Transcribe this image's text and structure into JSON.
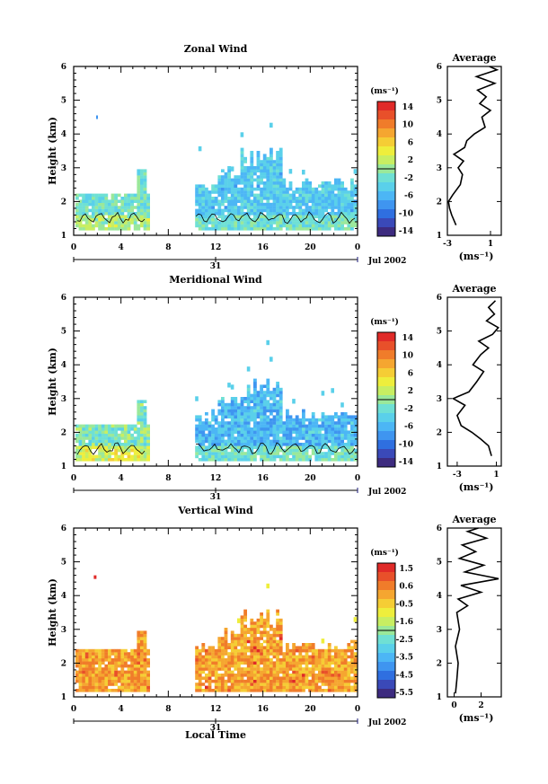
{
  "page": {
    "bottom_xlabel": "Local Time"
  },
  "chart_data": [
    {
      "type": "heatmap",
      "title": "Zonal Wind",
      "ylabel": "Height (km)",
      "xlabel": "",
      "xlim": [
        0,
        24
      ],
      "ylim": [
        1,
        6
      ],
      "x_ticks": [
        "0",
        "4",
        "8",
        "12",
        "16",
        "20",
        "0"
      ],
      "y_ticks": [
        "1",
        "2",
        "3",
        "4",
        "5",
        "6"
      ],
      "date_label": "31",
      "month_label": "Jul 2002",
      "colorbar": {
        "unit": "(ms⁻¹)",
        "ticks": [
          "14",
          "10",
          "6",
          "2",
          "-2",
          "-6",
          "-10",
          "-14"
        ],
        "min": -16,
        "max": 16
      },
      "average": {
        "title": "Average",
        "xlabel": "(ms⁻¹)",
        "xlim": [
          -3,
          2
        ],
        "x_ticks": [
          "-3",
          "1"
        ],
        "profile": [
          [
            -2.2,
            1.3
          ],
          [
            -2.6,
            1.6
          ],
          [
            -2.8,
            1.8
          ],
          [
            -2.9,
            2.0
          ],
          [
            -2.5,
            2.2
          ],
          [
            -1.8,
            2.5
          ],
          [
            -1.6,
            2.8
          ],
          [
            -2.0,
            3.0
          ],
          [
            -1.5,
            3.2
          ],
          [
            -2.4,
            3.4
          ],
          [
            -1.4,
            3.6
          ],
          [
            -1.2,
            3.8
          ],
          [
            -0.5,
            4.0
          ],
          [
            0.5,
            4.2
          ],
          [
            0.2,
            4.5
          ],
          [
            1.0,
            4.7
          ],
          [
            0.0,
            4.9
          ],
          [
            0.6,
            5.1
          ],
          [
            -0.2,
            5.3
          ],
          [
            1.4,
            5.5
          ],
          [
            -0.3,
            5.7
          ],
          [
            1.6,
            5.9
          ],
          [
            0.9,
            6.0
          ]
        ]
      }
    },
    {
      "type": "heatmap",
      "title": "Meridional Wind",
      "ylabel": "Height (km)",
      "xlabel": "",
      "xlim": [
        0,
        24
      ],
      "ylim": [
        1,
        6
      ],
      "x_ticks": [
        "0",
        "4",
        "8",
        "12",
        "16",
        "20",
        "0"
      ],
      "y_ticks": [
        "1",
        "2",
        "3",
        "4",
        "5",
        "6"
      ],
      "date_label": "31",
      "month_label": "Jul 2002",
      "colorbar": {
        "unit": "(ms⁻¹)",
        "ticks": [
          "14",
          "10",
          "6",
          "2",
          "-2",
          "-6",
          "-10",
          "-14"
        ],
        "min": -16,
        "max": 16
      },
      "average": {
        "title": "Average",
        "xlabel": "(ms⁻¹)",
        "xlim": [
          -4,
          1.5
        ],
        "x_ticks": [
          "-3",
          "1"
        ],
        "profile": [
          [
            0.5,
            1.3
          ],
          [
            0.2,
            1.6
          ],
          [
            -0.6,
            1.8
          ],
          [
            -1.5,
            2.0
          ],
          [
            -2.6,
            2.2
          ],
          [
            -3.0,
            2.5
          ],
          [
            -2.2,
            2.8
          ],
          [
            -3.4,
            3.0
          ],
          [
            -1.8,
            3.2
          ],
          [
            -1.0,
            3.5
          ],
          [
            -0.3,
            3.8
          ],
          [
            -1.4,
            4.0
          ],
          [
            -0.6,
            4.3
          ],
          [
            0.2,
            4.5
          ],
          [
            -0.8,
            4.7
          ],
          [
            0.6,
            4.9
          ],
          [
            1.2,
            5.1
          ],
          [
            0.0,
            5.3
          ],
          [
            0.8,
            5.5
          ],
          [
            0.2,
            5.7
          ],
          [
            0.9,
            5.9
          ]
        ]
      }
    },
    {
      "type": "heatmap",
      "title": "Vertical Wind",
      "ylabel": "Height (km)",
      "xlabel": "Local Time",
      "xlim": [
        0,
        24
      ],
      "ylim": [
        1,
        6
      ],
      "x_ticks": [
        "0",
        "4",
        "8",
        "12",
        "16",
        "20",
        "0"
      ],
      "y_ticks": [
        "1",
        "2",
        "3",
        "4",
        "5",
        "6"
      ],
      "date_label": "31",
      "month_label": "Jul 2002",
      "colorbar": {
        "unit": "(ms⁻¹)",
        "ticks": [
          "1.5",
          "0.6",
          "-0.5",
          "-1.6",
          "-2.5",
          "-3.5",
          "-4.5",
          "-5.5"
        ],
        "min": -6,
        "max": 2
      },
      "average": {
        "title": "Average",
        "xlabel": "(ms⁻¹)",
        "xlim": [
          -0.5,
          3.5
        ],
        "x_ticks": [
          "0",
          "2"
        ],
        "profile": [
          [
            0.1,
            1.1
          ],
          [
            0.2,
            1.5
          ],
          [
            0.3,
            2.0
          ],
          [
            0.1,
            2.5
          ],
          [
            0.4,
            3.0
          ],
          [
            0.2,
            3.5
          ],
          [
            1.0,
            3.7
          ],
          [
            0.3,
            3.9
          ],
          [
            2.0,
            4.1
          ],
          [
            0.5,
            4.3
          ],
          [
            3.3,
            4.5
          ],
          [
            0.8,
            4.7
          ],
          [
            2.2,
            4.9
          ],
          [
            0.4,
            5.1
          ],
          [
            1.6,
            5.3
          ],
          [
            0.6,
            5.5
          ],
          [
            2.4,
            5.7
          ],
          [
            1.0,
            5.9
          ],
          [
            1.8,
            6.0
          ]
        ]
      }
    }
  ]
}
